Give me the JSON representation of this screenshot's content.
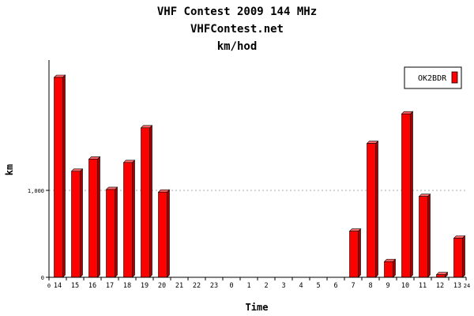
{
  "chart_data": {
    "type": "bar",
    "title": "VHF Contest 2009 144 MHz",
    "subtitle": "VHFContest.net",
    "subtitle2": "km/hod",
    "xlabel": "Time",
    "ylabel": "km",
    "categories": [
      "14",
      "15",
      "16",
      "17",
      "18",
      "19",
      "20",
      "21",
      "22",
      "23",
      "0",
      "1",
      "2",
      "3",
      "4",
      "5",
      "6",
      "7",
      "8",
      "9",
      "10",
      "11",
      "12",
      "13"
    ],
    "x_edge_labels": [
      "0",
      "24"
    ],
    "series": [
      {
        "name": "OK2BDR",
        "color": "#ff0000",
        "values": [
          2300,
          1220,
          1360,
          1010,
          1320,
          1720,
          980,
          0,
          0,
          0,
          0,
          0,
          0,
          0,
          0,
          0,
          0,
          530,
          1540,
          180,
          1880,
          930,
          30,
          450
        ]
      }
    ],
    "ylim": [
      0,
      2500
    ],
    "yticks": [
      {
        "value": 0,
        "label": "0"
      },
      {
        "value": 1000,
        "label": "1,000"
      }
    ],
    "grid": "dotted-at-1000",
    "legend_position": "top-right"
  }
}
